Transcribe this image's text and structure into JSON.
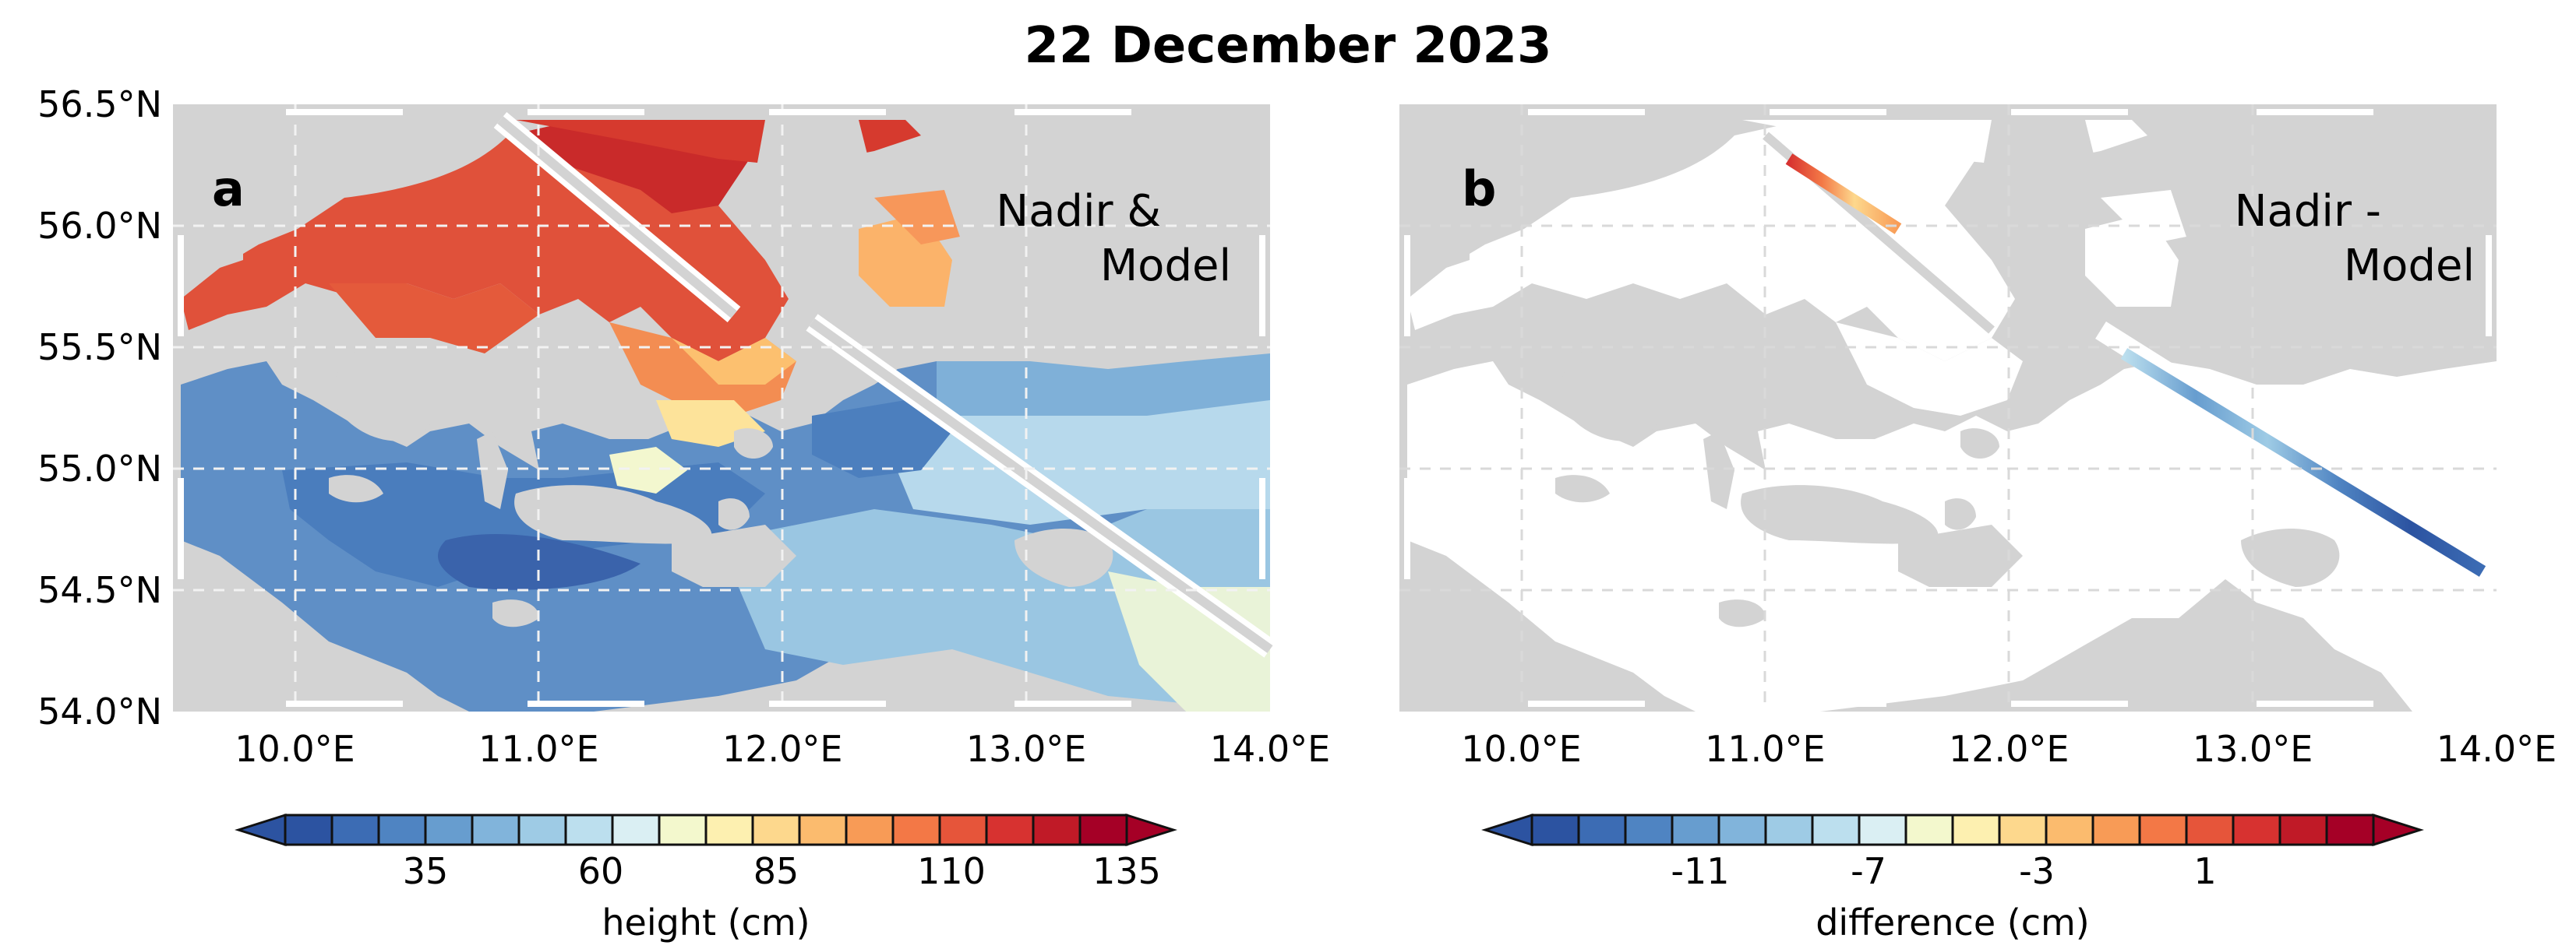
{
  "title": "22 December 2023",
  "map_extent": {
    "lon": [
      9.5,
      14.0
    ],
    "lat": [
      54.0,
      56.5
    ]
  },
  "lon_ticks": [
    {
      "value": 10.0,
      "label": "10.0°E"
    },
    {
      "value": 11.0,
      "label": "11.0°E"
    },
    {
      "value": 12.0,
      "label": "12.0°E"
    },
    {
      "value": 13.0,
      "label": "13.0°E"
    },
    {
      "value": 14.0,
      "label": "14.0°E"
    }
  ],
  "lat_ticks": [
    {
      "value": 56.5,
      "label": "56.5°N"
    },
    {
      "value": 56.0,
      "label": "56.0°N"
    },
    {
      "value": 55.5,
      "label": "55.5°N"
    },
    {
      "value": 55.0,
      "label": "55.0°N"
    },
    {
      "value": 54.5,
      "label": "54.5°N"
    },
    {
      "value": 54.0,
      "label": "54.0°N"
    }
  ],
  "colors": {
    "land": "#d3d3d3",
    "background": "#ffffff"
  },
  "panels": {
    "a": {
      "label": "a",
      "annotation_line1": "Nadir &",
      "annotation_line2": "Model",
      "colorbar": {
        "label": "height (cm)",
        "tick_labels": [
          "35",
          "60",
          "85",
          "110",
          "135"
        ],
        "tick_values": [
          35,
          60,
          85,
          110,
          135
        ],
        "range": [
          15,
          135
        ],
        "colors": [
          "#2c53a1",
          "#3c6cb4",
          "#4f84c2",
          "#679dcf",
          "#81b4db",
          "#9ecbe5",
          "#bcdfee",
          "#daeff3",
          "#f3f8cd",
          "#fdf0b0",
          "#fdd88d",
          "#fbbb6e",
          "#f89b56",
          "#f37846",
          "#e6553a",
          "#d73230",
          "#c01a27",
          "#a50026"
        ]
      }
    },
    "b": {
      "label": "b",
      "annotation_line1": "Nadir -",
      "annotation_line2": "Model",
      "colorbar": {
        "label": "difference (cm)",
        "tick_labels": [
          "-11",
          "-7",
          "-3",
          "1"
        ],
        "tick_values": [
          -11,
          -7,
          -3,
          1
        ],
        "range": [
          -15,
          5
        ],
        "colors": [
          "#2c53a1",
          "#3c6cb4",
          "#4f84c2",
          "#679dcf",
          "#81b4db",
          "#9ecbe5",
          "#bcdfee",
          "#daeff3",
          "#f3f8cd",
          "#fdf0b0",
          "#fdd88d",
          "#fbbb6e",
          "#f89b56",
          "#f37846",
          "#e6553a",
          "#d73230",
          "#c01a27",
          "#a50026"
        ]
      }
    }
  }
}
